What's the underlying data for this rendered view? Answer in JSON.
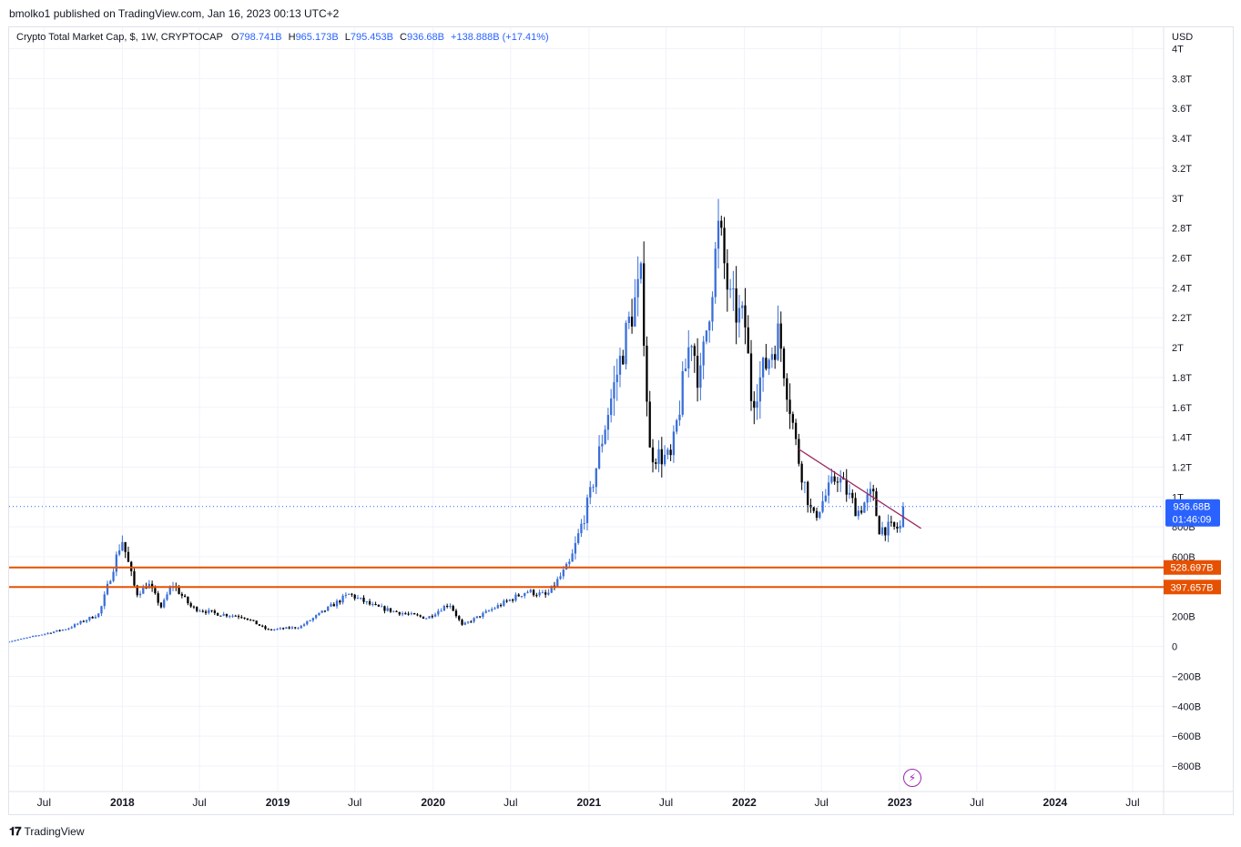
{
  "publisher_line": "bmolko1 published on TradingView.com, Jan 16, 2023 00:13 UTC+2",
  "legend": {
    "symbol": "Crypto Total Market Cap, $, 1W, CRYPTOCAP",
    "open_key": "O",
    "open": "798.741B",
    "high_key": "H",
    "high": "965.173B",
    "low_key": "L",
    "low": "795.453B",
    "close_key": "C",
    "close": "936.68B",
    "change": "+138.888B (+17.41%)"
  },
  "currency": "USD",
  "footer_brand": "TradingView",
  "colors": {
    "up": "#3a6fd8",
    "down": "#000000",
    "support": "#e65100",
    "trendline": "#9c2b5e",
    "price_tag": "#2962ff",
    "grid": "#f0f3fa"
  },
  "chart_data": {
    "type": "candlestick",
    "timeframe": "1W",
    "xlim": [
      "2017-04-10",
      "2024-08-15"
    ],
    "ylim": [
      -900000000000,
      4000000000000
    ],
    "grid": true,
    "y_ticks": [
      {
        "value": -800000000000,
        "label": "−800B"
      },
      {
        "value": -600000000000,
        "label": "−600B"
      },
      {
        "value": -400000000000,
        "label": "−400B"
      },
      {
        "value": -200000000000,
        "label": "−200B"
      },
      {
        "value": 0,
        "label": "0"
      },
      {
        "value": 200000000000,
        "label": "200B"
      },
      {
        "value": 600000000000,
        "label": "600B"
      },
      {
        "value": 800000000000,
        "label": "800B"
      },
      {
        "value": 1000000000000,
        "label": "1T"
      },
      {
        "value": 1200000000000,
        "label": "1.2T"
      },
      {
        "value": 1400000000000,
        "label": "1.4T"
      },
      {
        "value": 1600000000000,
        "label": "1.6T"
      },
      {
        "value": 1800000000000,
        "label": "1.8T"
      },
      {
        "value": 2000000000000,
        "label": "2T"
      },
      {
        "value": 2200000000000,
        "label": "2.2T"
      },
      {
        "value": 2400000000000,
        "label": "2.4T"
      },
      {
        "value": 2600000000000,
        "label": "2.6T"
      },
      {
        "value": 2800000000000,
        "label": "2.8T"
      },
      {
        "value": 3000000000000,
        "label": "3T"
      },
      {
        "value": 3200000000000,
        "label": "3.2T"
      },
      {
        "value": 3400000000000,
        "label": "3.4T"
      },
      {
        "value": 3600000000000,
        "label": "3.6T"
      },
      {
        "value": 3800000000000,
        "label": "3.8T"
      },
      {
        "value": 4000000000000,
        "label": "4T"
      }
    ],
    "x_ticks": [
      {
        "date": "2017-07-01",
        "label": "Jul",
        "bold": false
      },
      {
        "date": "2018-01-01",
        "label": "2018",
        "bold": true
      },
      {
        "date": "2018-07-01",
        "label": "Jul",
        "bold": false
      },
      {
        "date": "2019-01-01",
        "label": "2019",
        "bold": true
      },
      {
        "date": "2019-07-01",
        "label": "Jul",
        "bold": false
      },
      {
        "date": "2020-01-01",
        "label": "2020",
        "bold": true
      },
      {
        "date": "2020-07-01",
        "label": "Jul",
        "bold": false
      },
      {
        "date": "2021-01-01",
        "label": "2021",
        "bold": true
      },
      {
        "date": "2021-07-01",
        "label": "Jul",
        "bold": false
      },
      {
        "date": "2022-01-01",
        "label": "2022",
        "bold": true
      },
      {
        "date": "2022-07-01",
        "label": "Jul",
        "bold": false
      },
      {
        "date": "2023-01-01",
        "label": "2023",
        "bold": true
      },
      {
        "date": "2023-07-01",
        "label": "Jul",
        "bold": false
      },
      {
        "date": "2024-01-01",
        "label": "2024",
        "bold": true
      },
      {
        "date": "2024-07-01",
        "label": "Jul",
        "bold": false
      }
    ],
    "series_anchors": [
      [
        "2017-04-10",
        30000000000
      ],
      [
        "2017-06-01",
        60000000000
      ],
      [
        "2017-09-01",
        120000000000
      ],
      [
        "2017-11-15",
        220000000000
      ],
      [
        "2018-01-07",
        720000000000
      ],
      [
        "2018-02-10",
        350000000000
      ],
      [
        "2018-03-10",
        420000000000
      ],
      [
        "2018-04-10",
        260000000000
      ],
      [
        "2018-05-05",
        420000000000
      ],
      [
        "2018-06-20",
        260000000000
      ],
      [
        "2018-08-15",
        220000000000
      ],
      [
        "2018-10-20",
        200000000000
      ],
      [
        "2018-12-15",
        110000000000
      ],
      [
        "2019-03-01",
        130000000000
      ],
      [
        "2019-06-25",
        350000000000
      ],
      [
        "2019-08-20",
        270000000000
      ],
      [
        "2019-10-15",
        230000000000
      ],
      [
        "2019-12-25",
        190000000000
      ],
      [
        "2020-02-15",
        290000000000
      ],
      [
        "2020-03-16",
        140000000000
      ],
      [
        "2020-06-01",
        260000000000
      ],
      [
        "2020-08-15",
        370000000000
      ],
      [
        "2020-10-01",
        340000000000
      ],
      [
        "2020-11-25",
        560000000000
      ],
      [
        "2021-01-10",
        1000000000000
      ],
      [
        "2021-02-20",
        1550000000000
      ],
      [
        "2021-04-15",
        2200000000000
      ],
      [
        "2021-05-12",
        2450000000000
      ],
      [
        "2021-05-30",
        1300000000000
      ],
      [
        "2021-07-20",
        1250000000000
      ],
      [
        "2021-09-05",
        2100000000000
      ],
      [
        "2021-09-25",
        1750000000000
      ],
      [
        "2021-11-09",
        2800000000000
      ],
      [
        "2021-12-05",
        2300000000000
      ],
      [
        "2022-01-10",
        2150000000000
      ],
      [
        "2022-01-25",
        1650000000000
      ],
      [
        "2022-03-30",
        2100000000000
      ],
      [
        "2022-05-12",
        1300000000000
      ],
      [
        "2022-06-18",
        850000000000
      ],
      [
        "2022-08-14",
        1150000000000
      ],
      [
        "2022-10-01",
        900000000000
      ],
      [
        "2022-11-05",
        1030000000000
      ],
      [
        "2022-11-20",
        790000000000
      ],
      [
        "2022-12-31",
        790000000000
      ],
      [
        "2023-01-09",
        798741000000
      ]
    ],
    "last_candle": {
      "date": "2023-01-09",
      "open": 798741000000,
      "high": 965173000000,
      "low": 795453000000,
      "close": 936680000000
    },
    "price_line": {
      "value": 936680000000,
      "label": "936.68B",
      "countdown": "01:46:09"
    },
    "horizontal_levels": [
      {
        "value": 528697000000,
        "label": "528.697B"
      },
      {
        "value": 397657000000,
        "label": "397.657B"
      }
    ],
    "trendline": {
      "start": [
        "2022-05-09",
        1320000000000
      ],
      "end": [
        "2023-02-20",
        790000000000
      ]
    }
  }
}
